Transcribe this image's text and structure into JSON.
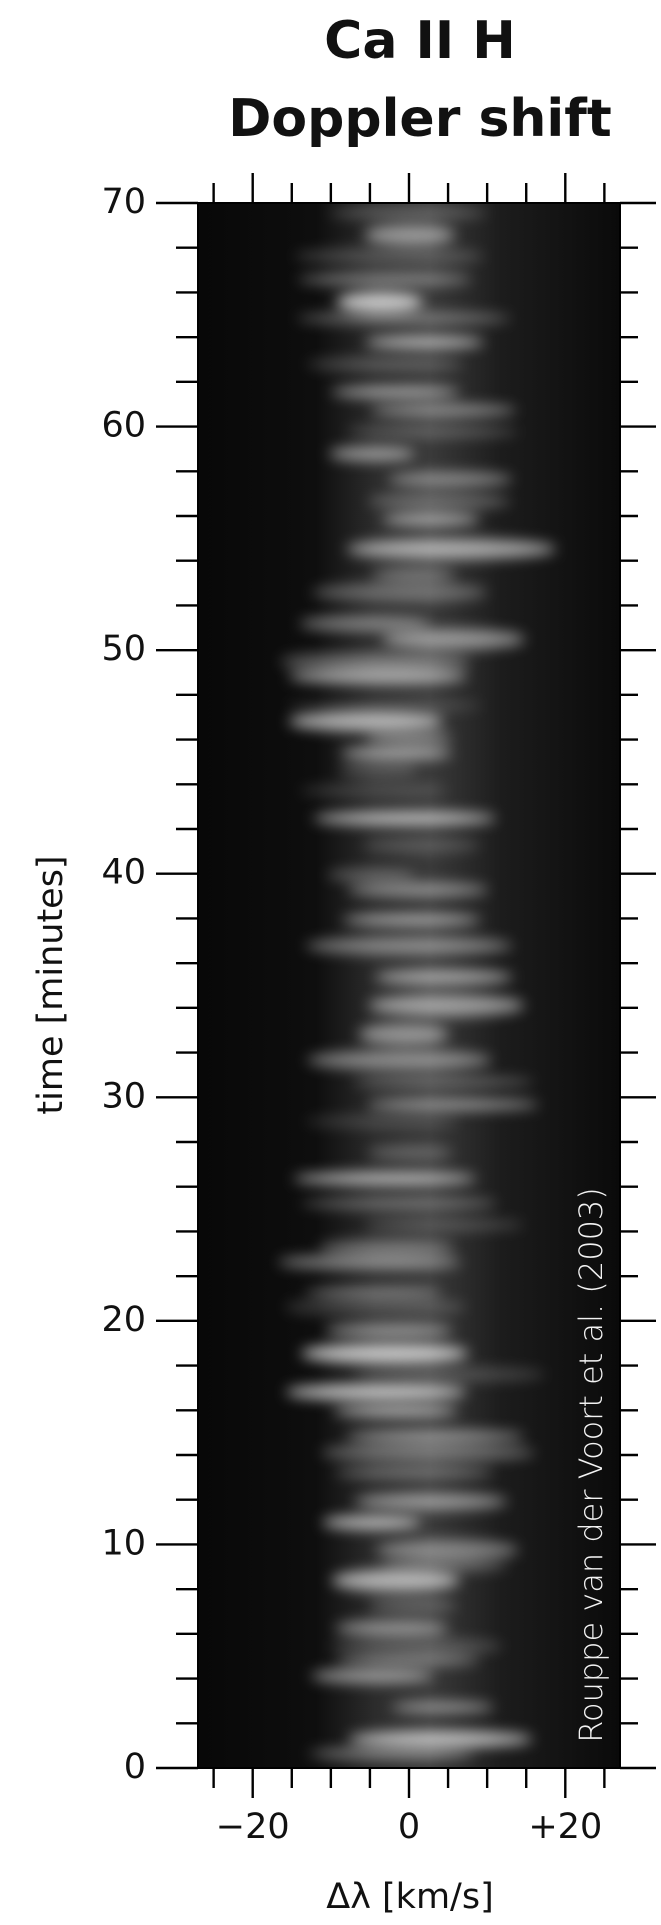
{
  "chart_data": {
    "type": "spectrogram",
    "title": "Ca II H",
    "subtitle": "Doppler shift",
    "x_label": "Δλ [km/s]",
    "y_label": "time [minutes]",
    "annotation": "Rouppe van der Voort et al. (2003)",
    "xlim": [
      -27,
      27
    ],
    "ylim": [
      0,
      70
    ],
    "xticks": [
      {
        "value": -20,
        "label": "−20"
      },
      0,
      {
        "value": 20,
        "label": "+20"
      }
    ],
    "yticks": [
      0,
      10,
      20,
      30,
      40,
      50,
      60,
      70
    ],
    "xminorticks": [
      -25,
      -15,
      -10,
      -5,
      5,
      10,
      15,
      25
    ],
    "yminorticks": [
      2,
      4,
      6,
      8,
      12,
      14,
      16,
      18,
      22,
      24,
      26,
      28,
      32,
      34,
      36,
      38,
      42,
      44,
      46,
      48,
      52,
      54,
      56,
      58,
      62,
      64,
      66,
      68
    ]
  }
}
